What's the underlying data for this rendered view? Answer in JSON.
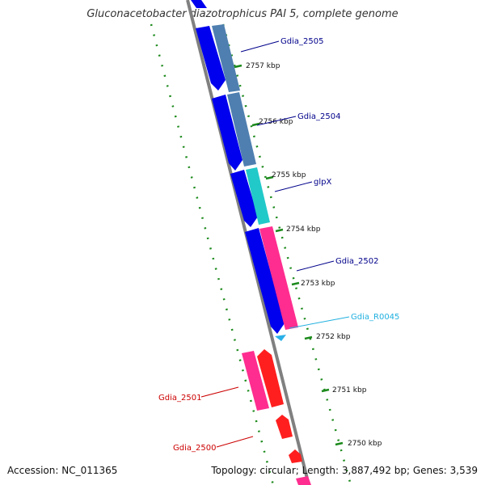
{
  "title": "Gluconacetobacter diazotrophicus PAI 5, complete genome",
  "accession": "Accession: NC_011365",
  "summary": "Topology: circular; Length: 3,887,492 bp; Genes: 3,539",
  "colors": {
    "cds_forward": "#0000ee",
    "cds_forward_light": "#4f7fb0",
    "glpx": "#22c9c9",
    "reverse_cds": "#ff1f1f",
    "pink_gene": "#ff2d8f",
    "rna": "#2ab0e8",
    "backbone": "#808080",
    "dots": "#1c8a1c",
    "label_blue": "#00008b",
    "label_cyan": "#20b0e0",
    "label_red": "#cc0000"
  },
  "ticks": [
    {
      "label": "2757 kbp"
    },
    {
      "label": "2756 kbp"
    },
    {
      "label": "2755 kbp"
    },
    {
      "label": "2754 kbp"
    },
    {
      "label": "2753 kbp"
    },
    {
      "label": "2752 kbp"
    },
    {
      "label": "2751 kbp"
    },
    {
      "label": "2750 kbp"
    }
  ],
  "labels": {
    "gdia_2505": "Gdia_2505",
    "gdia_2504": "Gdia_2504",
    "glpx": "glpX",
    "gdia_2502": "Gdia_2502",
    "gdia_r0045": "Gdia_R0045",
    "gdia_2501": "Gdia_2501",
    "gdia_2500": "Gdia_2500"
  }
}
